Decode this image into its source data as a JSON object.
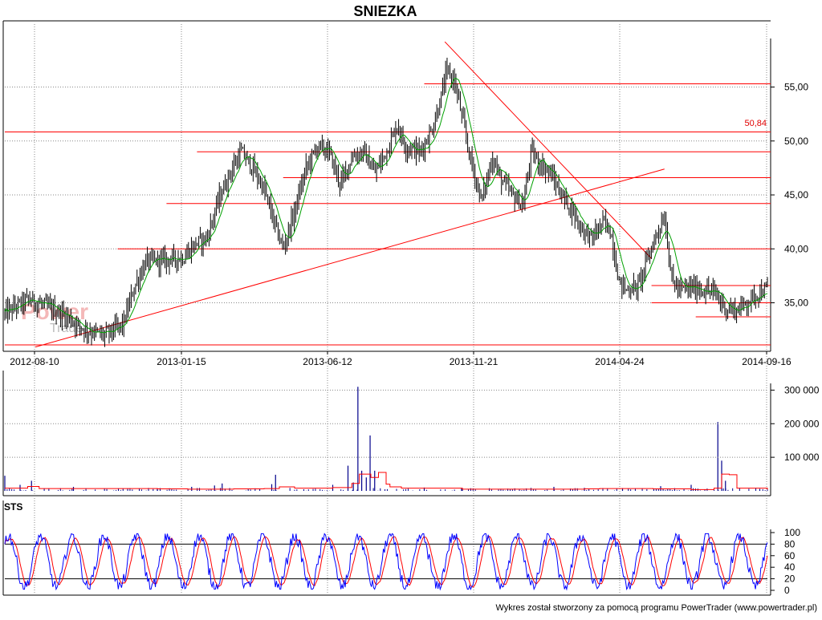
{
  "chart_data": [
    {
      "type": "candlestick",
      "title": "SNIEZKA",
      "x_tick_labels": [
        "2012-08-10",
        "2013-01-15",
        "2013-06-12",
        "2013-11-21",
        "2014-04-24",
        "2014-09-16"
      ],
      "y_tick_labels": [
        "35,00",
        "40,00",
        "45,00",
        "50,00",
        "55,00"
      ],
      "ylim": [
        30.8,
        59.5
      ],
      "price_annotation": "50,84",
      "horizontal_levels": [
        {
          "y": 55.3,
          "x_start_frac": 0.55
        },
        {
          "y": 50.84,
          "x_start_frac": 0.0
        },
        {
          "y": 49.0,
          "x_start_frac": 0.252
        },
        {
          "y": 46.6,
          "x_start_frac": 0.365
        },
        {
          "y": 44.2,
          "x_start_frac": 0.212
        },
        {
          "y": 40.0,
          "x_start_frac": 0.148
        },
        {
          "y": 36.6,
          "x_start_frac": 0.848
        },
        {
          "y": 35.0,
          "x_start_frac": 0.848
        },
        {
          "y": 33.7,
          "x_start_frac": 0.906
        },
        {
          "y": 31.1,
          "x_start_frac": 0.0
        }
      ],
      "trend_lines": [
        {
          "from": [
            0.04,
            30.9
          ],
          "to": [
            0.865,
            47.4
          ]
        },
        {
          "from": [
            0.577,
            59.2
          ],
          "to": [
            0.848,
            39.1
          ]
        }
      ],
      "price_path": [
        [
          0.0,
          34.0
        ],
        [
          0.03,
          35.3
        ],
        [
          0.05,
          34.8
        ],
        [
          0.08,
          33.8
        ],
        [
          0.105,
          32.5
        ],
        [
          0.13,
          32.0
        ],
        [
          0.155,
          33.0
        ],
        [
          0.17,
          36.5
        ],
        [
          0.185,
          38.8
        ],
        [
          0.21,
          39.0
        ],
        [
          0.235,
          39.2
        ],
        [
          0.25,
          40.5
        ],
        [
          0.265,
          41.0
        ],
        [
          0.28,
          44.5
        ],
        [
          0.295,
          47.0
        ],
        [
          0.31,
          49.0
        ],
        [
          0.325,
          47.5
        ],
        [
          0.34,
          45.5
        ],
        [
          0.355,
          42.0
        ],
        [
          0.365,
          40.0
        ],
        [
          0.38,
          43.5
        ],
        [
          0.395,
          47.5
        ],
        [
          0.41,
          49.5
        ],
        [
          0.425,
          49.0
        ],
        [
          0.44,
          46.0
        ],
        [
          0.455,
          48.5
        ],
        [
          0.47,
          49.0
        ],
        [
          0.485,
          47.0
        ],
        [
          0.5,
          49.0
        ],
        [
          0.515,
          51.5
        ],
        [
          0.525,
          49.5
        ],
        [
          0.545,
          49.0
        ],
        [
          0.56,
          51.0
        ],
        [
          0.57,
          53.5
        ],
        [
          0.58,
          56.5
        ],
        [
          0.59,
          55.5
        ],
        [
          0.6,
          52.0
        ],
        [
          0.61,
          48.5
        ],
        [
          0.625,
          44.5
        ],
        [
          0.64,
          48.5
        ],
        [
          0.65,
          46.5
        ],
        [
          0.665,
          45.0
        ],
        [
          0.68,
          44.0
        ],
        [
          0.69,
          49.0
        ],
        [
          0.7,
          48.0
        ],
        [
          0.715,
          47.0
        ],
        [
          0.73,
          45.0
        ],
        [
          0.745,
          43.5
        ],
        [
          0.755,
          42.0
        ],
        [
          0.77,
          41.0
        ],
        [
          0.785,
          42.5
        ],
        [
          0.795,
          41.5
        ],
        [
          0.805,
          37.0
        ],
        [
          0.815,
          36.2
        ],
        [
          0.83,
          36.5
        ],
        [
          0.84,
          38.5
        ],
        [
          0.855,
          41.5
        ],
        [
          0.865,
          43.0
        ],
        [
          0.875,
          37.0
        ],
        [
          0.885,
          36.2
        ],
        [
          0.9,
          36.4
        ],
        [
          0.915,
          36.2
        ],
        [
          0.93,
          36.0
        ],
        [
          0.945,
          34.5
        ],
        [
          0.96,
          34.3
        ],
        [
          0.975,
          35.2
        ],
        [
          0.99,
          36.0
        ],
        [
          1.0,
          36.2
        ]
      ]
    },
    {
      "type": "bar",
      "series_name": "volume",
      "y_tick_labels": [
        "100 000",
        "200 000",
        "300 000"
      ],
      "ylim": [
        0,
        320000
      ],
      "spikes": [
        [
          0.0,
          45000
        ],
        [
          0.02,
          18000
        ],
        [
          0.035,
          30000
        ],
        [
          0.09,
          12000
        ],
        [
          0.2,
          8000
        ],
        [
          0.245,
          12000
        ],
        [
          0.275,
          16000
        ],
        [
          0.285,
          22000
        ],
        [
          0.355,
          48000
        ],
        [
          0.35,
          20000
        ],
        [
          0.43,
          18000
        ],
        [
          0.45,
          75000
        ],
        [
          0.457,
          25000
        ],
        [
          0.463,
          310000
        ],
        [
          0.468,
          60000
        ],
        [
          0.474,
          40000
        ],
        [
          0.479,
          165000
        ],
        [
          0.485,
          60000
        ],
        [
          0.55,
          10000
        ],
        [
          0.6,
          8000
        ],
        [
          0.72,
          12000
        ],
        [
          0.76,
          9000
        ],
        [
          0.81,
          8000
        ],
        [
          0.86,
          14000
        ],
        [
          0.9,
          18000
        ],
        [
          0.935,
          205000
        ],
        [
          0.94,
          90000
        ],
        [
          0.945,
          30000
        ],
        [
          0.99,
          6000
        ]
      ],
      "average_path": [
        [
          0.0,
          8000
        ],
        [
          0.03,
          13000
        ],
        [
          0.045,
          7000
        ],
        [
          0.2,
          6000
        ],
        [
          0.24,
          5000
        ],
        [
          0.3,
          6000
        ],
        [
          0.34,
          7000
        ],
        [
          0.36,
          12000
        ],
        [
          0.38,
          8000
        ],
        [
          0.43,
          10000
        ],
        [
          0.455,
          22000
        ],
        [
          0.465,
          50000
        ],
        [
          0.48,
          40000
        ],
        [
          0.49,
          55000
        ],
        [
          0.5,
          20000
        ],
        [
          0.505,
          12000
        ],
        [
          0.52,
          8000
        ],
        [
          0.6,
          5000
        ],
        [
          0.7,
          5000
        ],
        [
          0.76,
          6000
        ],
        [
          0.78,
          7000
        ],
        [
          0.85,
          6000
        ],
        [
          0.9,
          4000
        ],
        [
          0.93,
          8000
        ],
        [
          0.94,
          50000
        ],
        [
          0.95,
          48000
        ],
        [
          0.96,
          8000
        ],
        [
          1.0,
          4000
        ]
      ]
    },
    {
      "type": "line",
      "title": "STS",
      "y_tick_labels": [
        "0",
        "20",
        "40",
        "60",
        "80",
        "100"
      ],
      "ylim": [
        0,
        100
      ],
      "reference_lines": [
        20,
        80
      ],
      "cycles": 24
    }
  ],
  "footer": {
    "credit": "Wykres został stworzony za pomocą programu PowerTrader (www.powertrader.pl)"
  },
  "watermark": {
    "line1": "Power",
    "line2": "Trader"
  },
  "colors": {
    "candle": "#000000",
    "moving_average": "#00a000",
    "levels": "#ff0000",
    "volume": "#00008b",
    "volume_average": "#ff0000",
    "sts_k": "#0000ff",
    "sts_d": "#ff0000",
    "grid": "#888888"
  }
}
